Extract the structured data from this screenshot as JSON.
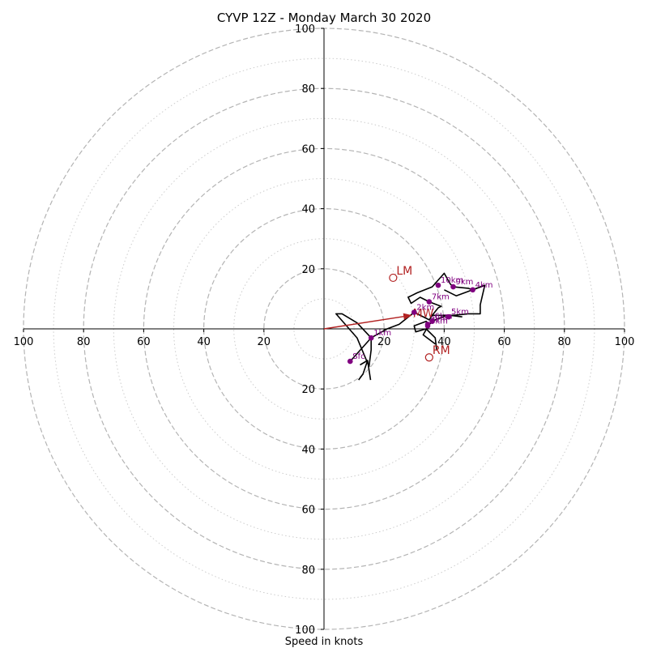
{
  "chart_data": {
    "type": "scatter",
    "title": "CYVP 12Z - Monday March 30 2020",
    "xlabel": "Speed in knots",
    "ylabel": "",
    "xlim": [
      -100,
      100
    ],
    "ylim": [
      -100,
      100
    ],
    "rings": {
      "major": [
        20,
        40,
        60,
        80,
        100
      ],
      "minor": [
        10,
        30,
        50,
        70,
        90
      ],
      "major_style": "dashed",
      "minor_style": "dotted"
    },
    "x_ticks": [
      {
        "value": -100,
        "label": "100"
      },
      {
        "value": -80,
        "label": "80"
      },
      {
        "value": -60,
        "label": "60"
      },
      {
        "value": -40,
        "label": "40"
      },
      {
        "value": -20,
        "label": "20"
      },
      {
        "value": 20,
        "label": "20"
      },
      {
        "value": 40,
        "label": "40"
      },
      {
        "value": 60,
        "label": "60"
      },
      {
        "value": 80,
        "label": "80"
      },
      {
        "value": 100,
        "label": "100"
      }
    ],
    "y_ticks": [
      {
        "value": 100,
        "label": "100"
      },
      {
        "value": 80,
        "label": "80"
      },
      {
        "value": 60,
        "label": "60"
      },
      {
        "value": 40,
        "label": "40"
      },
      {
        "value": 20,
        "label": "20"
      },
      {
        "value": -20,
        "label": "20"
      },
      {
        "value": -40,
        "label": "40"
      },
      {
        "value": -60,
        "label": "60"
      },
      {
        "value": -80,
        "label": "80"
      },
      {
        "value": -100,
        "label": "100"
      }
    ],
    "hodograph": {
      "color": "#000000",
      "points": [
        [
          8.7,
          -10.8
        ],
        [
          15.7,
          -3.0
        ],
        [
          15.7,
          -7.0
        ],
        [
          15.0,
          -12.5
        ],
        [
          11.0,
          -3.0
        ],
        [
          4.0,
          5.0
        ],
        [
          6.0,
          5.0
        ],
        [
          11.0,
          2.0
        ],
        [
          15.7,
          -3.0
        ],
        [
          21.0,
          0.0
        ],
        [
          25.0,
          1.5
        ],
        [
          30.0,
          5.5
        ],
        [
          31.0,
          5.0
        ],
        [
          35.0,
          3.0
        ],
        [
          36.0,
          4.5
        ],
        [
          38.0,
          7.0
        ],
        [
          39.0,
          7.5
        ],
        [
          35.0,
          9.0
        ],
        [
          32.0,
          10.5
        ],
        [
          29.0,
          8.5
        ],
        [
          28.0,
          10.5
        ],
        [
          31.0,
          12.0
        ],
        [
          36.0,
          14.0
        ],
        [
          40.0,
          18.5
        ],
        [
          42.0,
          15.0
        ],
        [
          43.0,
          14.0
        ],
        [
          48.0,
          13.5
        ],
        [
          49.5,
          13.0
        ],
        [
          53.5,
          14.5
        ],
        [
          52.0,
          8.0
        ],
        [
          52.0,
          5.0
        ],
        [
          48.0,
          5.0
        ],
        [
          43.0,
          4.5
        ],
        [
          41.0,
          4.5
        ],
        [
          37.0,
          3.0
        ],
        [
          35.0,
          1.5
        ],
        [
          34.0,
          2.5
        ],
        [
          30.0,
          1.0
        ],
        [
          30.5,
          -1.0
        ],
        [
          34.0,
          0.0
        ],
        [
          37.0,
          -3.0
        ],
        [
          37.5,
          -7.0
        ]
      ],
      "extra_segments": [
        [
          [
            35.0,
            1.5
          ],
          [
            33.0,
            -2.0
          ],
          [
            37.0,
            -5.0
          ]
        ],
        [
          [
            36.0,
            4.5
          ],
          [
            42.0,
            4.5
          ],
          [
            46.0,
            4.0
          ]
        ],
        [
          [
            53.5,
            14.5
          ],
          [
            44.0,
            11.0
          ],
          [
            40.0,
            13.0
          ]
        ],
        [
          [
            12.0,
            -12.0
          ],
          [
            14.5,
            -10.5
          ],
          [
            15.5,
            -17.0
          ]
        ],
        [
          [
            14.5,
            -10.5
          ],
          [
            13.0,
            -15.0
          ],
          [
            11.5,
            -17.0
          ]
        ]
      ]
    },
    "height_markers": {
      "color": "#800080",
      "points": [
        {
          "label": "Sfc",
          "x": 8.7,
          "y": -10.8
        },
        {
          "label": "1km",
          "x": 15.7,
          "y": -3.0
        },
        {
          "label": "2km",
          "x": 30.0,
          "y": 5.5
        },
        {
          "label": "3km",
          "x": 34.5,
          "y": 1.5
        },
        {
          "label": "4km",
          "x": 49.5,
          "y": 13.0
        },
        {
          "label": "5km",
          "x": 41.5,
          "y": 4.0
        },
        {
          "label": "6km",
          "x": 36.0,
          "y": 2.5
        },
        {
          "label": "7km",
          "x": 35.0,
          "y": 9.0
        },
        {
          "label": "8km",
          "x": 34.5,
          "y": 1.0
        },
        {
          "label": "9km",
          "x": 43.0,
          "y": 14.0
        },
        {
          "label": "10km",
          "x": 38.0,
          "y": 14.5
        }
      ]
    },
    "storm_motion": {
      "color": "#b22222",
      "markers": [
        {
          "label": "LM",
          "x": 23.0,
          "y": 17.0
        },
        {
          "label": "RM",
          "x": 35.0,
          "y": -9.5
        }
      ],
      "mean_wind": {
        "label": "MW",
        "x": 29.0,
        "y": 4.5
      },
      "arrow": {
        "from": [
          0,
          0
        ],
        "to": [
          29.0,
          4.5
        ]
      }
    }
  }
}
